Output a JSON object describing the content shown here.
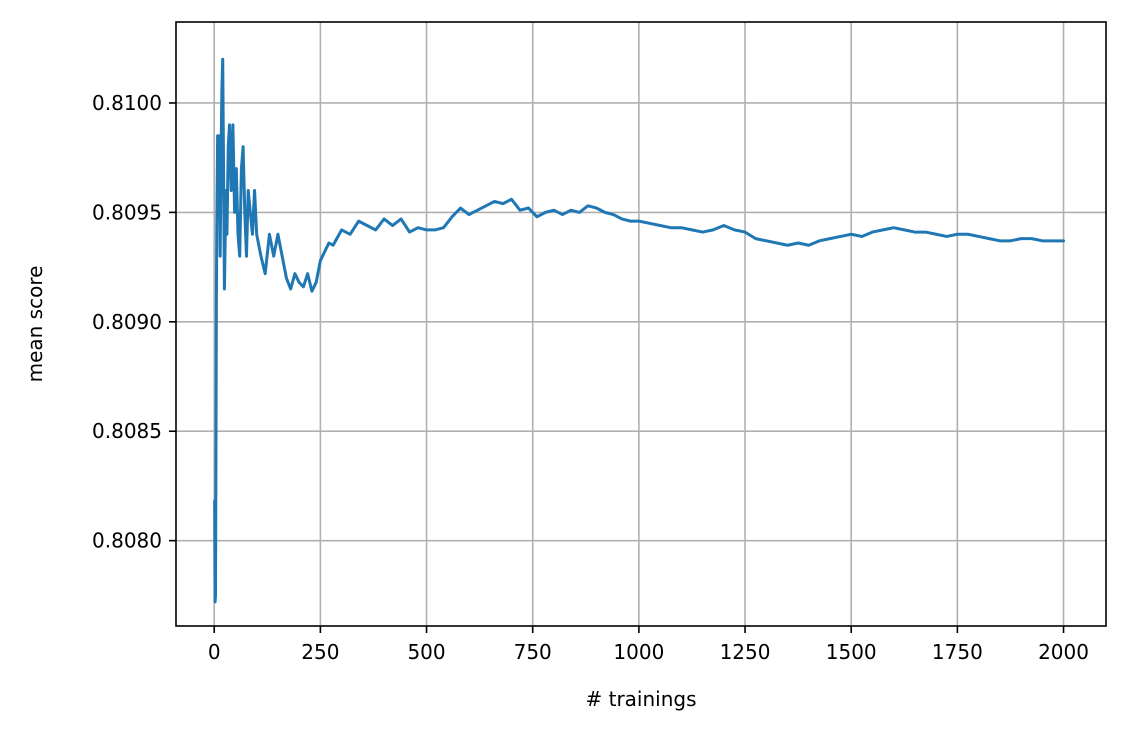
{
  "chart_data": {
    "type": "line",
    "title": "",
    "xlabel": "# trainings",
    "ylabel": "mean score",
    "xlim": [
      -90,
      2100
    ],
    "ylim": [
      0.80761,
      0.81037
    ],
    "xticks": [
      0,
      250,
      500,
      750,
      1000,
      1250,
      1500,
      1750,
      2000
    ],
    "xtick_labels": [
      "0",
      "250",
      "500",
      "750",
      "1000",
      "1250",
      "1500",
      "1750",
      "2000"
    ],
    "yticks": [
      0.808,
      0.8085,
      0.809,
      0.8095,
      0.81
    ],
    "ytick_labels": [
      "0.8080",
      "0.8085",
      "0.8090",
      "0.8095",
      "0.8100"
    ],
    "grid": true,
    "colors": {
      "series": "#1f77b4",
      "grid": "#b0b0b0",
      "axes": "#000000"
    },
    "series": [
      {
        "x": [
          1,
          2,
          3,
          4,
          5,
          6,
          8,
          10,
          12,
          14,
          16,
          18,
          20,
          22,
          24,
          26,
          28,
          30,
          33,
          36,
          40,
          44,
          48,
          52,
          56,
          60,
          64,
          68,
          72,
          76,
          80,
          85,
          90,
          95,
          100,
          110,
          120,
          130,
          140,
          150,
          160,
          170,
          180,
          190,
          200,
          210,
          220,
          230,
          240,
          250,
          260,
          270,
          280,
          300,
          320,
          340,
          360,
          380,
          400,
          420,
          440,
          460,
          480,
          500,
          520,
          540,
          560,
          580,
          600,
          620,
          640,
          660,
          680,
          700,
          720,
          740,
          760,
          780,
          800,
          820,
          840,
          860,
          880,
          900,
          920,
          940,
          960,
          980,
          1000,
          1025,
          1050,
          1075,
          1100,
          1125,
          1150,
          1175,
          1200,
          1225,
          1250,
          1275,
          1300,
          1325,
          1350,
          1375,
          1400,
          1425,
          1450,
          1475,
          1500,
          1525,
          1550,
          1575,
          1600,
          1625,
          1650,
          1675,
          1700,
          1725,
          1750,
          1775,
          1800,
          1825,
          1850,
          1875,
          1900,
          1925,
          1950,
          1975,
          2000
        ],
        "y": [
          0.80818,
          0.80772,
          0.80775,
          0.80835,
          0.80905,
          0.80942,
          0.80985,
          0.80955,
          0.80985,
          0.8093,
          0.80975,
          0.81005,
          0.8102,
          0.8097,
          0.80915,
          0.8094,
          0.8096,
          0.8094,
          0.8098,
          0.8099,
          0.8096,
          0.8099,
          0.8095,
          0.8097,
          0.8094,
          0.8093,
          0.8097,
          0.8098,
          0.8095,
          0.8093,
          0.8096,
          0.8095,
          0.8094,
          0.8096,
          0.8094,
          0.8093,
          0.80922,
          0.8094,
          0.8093,
          0.8094,
          0.8093,
          0.8092,
          0.80915,
          0.80922,
          0.80918,
          0.80916,
          0.80922,
          0.80914,
          0.80918,
          0.80928,
          0.80932,
          0.80936,
          0.80935,
          0.80942,
          0.8094,
          0.80946,
          0.80944,
          0.80942,
          0.80947,
          0.80944,
          0.80947,
          0.80941,
          0.80943,
          0.80942,
          0.80942,
          0.80943,
          0.80948,
          0.80952,
          0.80949,
          0.80951,
          0.80953,
          0.80955,
          0.80954,
          0.80956,
          0.80951,
          0.80952,
          0.80948,
          0.8095,
          0.80951,
          0.80949,
          0.80951,
          0.8095,
          0.80953,
          0.80952,
          0.8095,
          0.80949,
          0.80947,
          0.80946,
          0.80946,
          0.80945,
          0.80944,
          0.80943,
          0.80943,
          0.80942,
          0.80941,
          0.80942,
          0.80944,
          0.80942,
          0.80941,
          0.80938,
          0.80937,
          0.80936,
          0.80935,
          0.80936,
          0.80935,
          0.80937,
          0.80938,
          0.80939,
          0.8094,
          0.80939,
          0.80941,
          0.80942,
          0.80943,
          0.80942,
          0.80941,
          0.80941,
          0.8094,
          0.80939,
          0.8094,
          0.8094,
          0.80939,
          0.80938,
          0.80937,
          0.80937,
          0.80938,
          0.80938,
          0.80937,
          0.80937,
          0.80937
        ]
      }
    ]
  }
}
